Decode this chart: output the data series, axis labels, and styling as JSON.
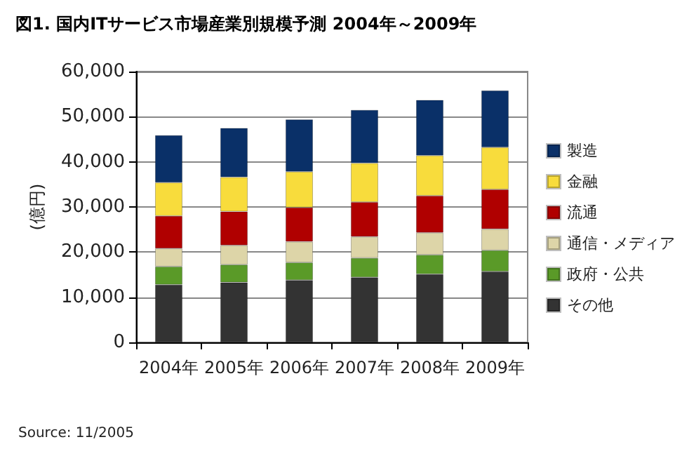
{
  "chart_data": {
    "type": "bar",
    "title": "図1. 国内ITサービス市場産業別規模予測 2004年～2009年",
    "ylabel": "(億円)",
    "categories": [
      "2004年",
      "2005年",
      "2006年",
      "2007年",
      "2008年",
      "2009年"
    ],
    "series": [
      {
        "name": "その他",
        "color": "#333333",
        "values": [
          12800,
          13300,
          13800,
          14400,
          15100,
          15700
        ]
      },
      {
        "name": "政府・公共",
        "color": "#5a9a28",
        "values": [
          4000,
          3900,
          3900,
          4300,
          4300,
          4700
        ]
      },
      {
        "name": "通信・メディア",
        "color": "#ddd5a8",
        "values": [
          4000,
          4300,
          4600,
          4700,
          4900,
          4700
        ]
      },
      {
        "name": "流通",
        "color": "#b00000",
        "values": [
          7200,
          7500,
          7600,
          7700,
          8200,
          8800
        ]
      },
      {
        "name": "金融",
        "color": "#f8dc3c",
        "values": [
          7400,
          7600,
          7900,
          8600,
          8900,
          9300
        ]
      },
      {
        "name": "製造",
        "color": "#0a3068",
        "values": [
          10500,
          10900,
          11600,
          11800,
          12300,
          12600
        ]
      }
    ],
    "stacked": true,
    "ylim": [
      0,
      60000
    ],
    "yticks": [
      0,
      {
        "value": 10000,
        "label": "10,000"
      },
      {
        "value": 20000,
        "label": "20,000"
      },
      {
        "value": 30000,
        "label": "30,000"
      },
      {
        "value": 40000,
        "label": "40,000"
      },
      {
        "value": 50000,
        "label": "50,000"
      },
      {
        "value": 60000,
        "label": "60,000"
      }
    ],
    "grid": "y",
    "legend": "right",
    "annotations": [
      "Source: 11/2005"
    ]
  }
}
